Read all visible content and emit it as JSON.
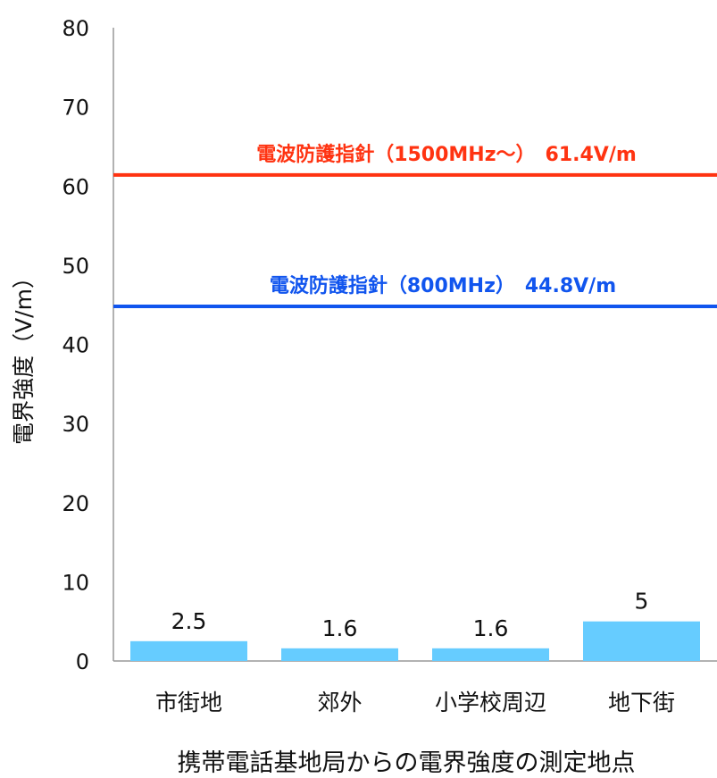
{
  "chart_data": {
    "type": "bar",
    "categories": [
      "市街地",
      "郊外",
      "小学校周辺",
      "地下街"
    ],
    "values": [
      2.5,
      1.6,
      1.6,
      5
    ],
    "data_labels": [
      "2.5",
      "1.6",
      "1.6",
      "5"
    ],
    "xlabel": "携帯電話基地局からの電界強度の測定地点",
    "ylabel": "電界強度（V/m）",
    "ylim": [
      0,
      80
    ],
    "yticks": [
      0,
      10,
      20,
      30,
      40,
      50,
      60,
      70,
      80
    ],
    "grid": false,
    "bar_color": "#66ccff",
    "reference_lines": [
      {
        "value": 61.4,
        "label": "電波防護指針（1500MHz～）　61.4V/m",
        "color": "#ff3311"
      },
      {
        "value": 44.8,
        "label": "電波防護指針（800MHz）　44.8V/m",
        "color": "#1155ee"
      }
    ]
  }
}
